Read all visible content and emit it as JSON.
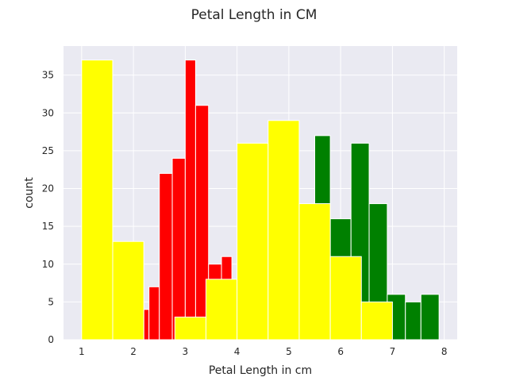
{
  "chart_data": {
    "type": "bar",
    "title": "Petal Length in CM",
    "xlabel": "Petal Length in cm",
    "ylabel": "count",
    "xlim": [
      0.65,
      8.25
    ],
    "ylim": [
      0,
      38.85
    ],
    "xticks": [
      1,
      2,
      3,
      4,
      5,
      6,
      7,
      8
    ],
    "yticks": [
      0,
      5,
      10,
      15,
      20,
      25,
      30,
      35
    ],
    "grid": true,
    "background": "#eaeaf2",
    "series": [
      {
        "color": "#008000",
        "bins": [
          {
            "x0": 5.5,
            "x1": 5.8,
            "count": 27
          },
          {
            "x0": 5.8,
            "x1": 6.2,
            "count": 16
          },
          {
            "x0": 6.2,
            "x1": 6.55,
            "count": 26
          },
          {
            "x0": 6.55,
            "x1": 6.9,
            "count": 18
          },
          {
            "x0": 6.9,
            "x1": 7.25,
            "count": 6
          },
          {
            "x0": 7.25,
            "x1": 7.55,
            "count": 5
          },
          {
            "x0": 7.55,
            "x1": 7.9,
            "count": 6
          }
        ]
      },
      {
        "color": "#ff0000",
        "bins": [
          {
            "x0": 2.2,
            "x1": 2.3,
            "count": 4
          },
          {
            "x0": 2.3,
            "x1": 2.5,
            "count": 7
          },
          {
            "x0": 2.5,
            "x1": 2.75,
            "count": 22
          },
          {
            "x0": 2.75,
            "x1": 3.0,
            "count": 24
          },
          {
            "x0": 3.0,
            "x1": 3.2,
            "count": 37
          },
          {
            "x0": 3.2,
            "x1": 3.45,
            "count": 31
          },
          {
            "x0": 3.45,
            "x1": 3.7,
            "count": 10
          },
          {
            "x0": 3.7,
            "x1": 3.9,
            "count": 11
          }
        ]
      },
      {
        "color": "#ffff00",
        "bins": [
          {
            "x0": 1.0,
            "x1": 1.6,
            "count": 37
          },
          {
            "x0": 1.6,
            "x1": 2.2,
            "count": 13
          },
          {
            "x0": 2.2,
            "x1": 2.8,
            "count": 0
          },
          {
            "x0": 2.8,
            "x1": 3.4,
            "count": 3
          },
          {
            "x0": 3.4,
            "x1": 4.0,
            "count": 8
          },
          {
            "x0": 4.0,
            "x1": 4.6,
            "count": 26
          },
          {
            "x0": 4.6,
            "x1": 5.2,
            "count": 29
          },
          {
            "x0": 5.2,
            "x1": 5.8,
            "count": 18
          },
          {
            "x0": 5.8,
            "x1": 6.4,
            "count": 11
          },
          {
            "x0": 6.4,
            "x1": 7.0,
            "count": 5
          }
        ]
      }
    ]
  }
}
